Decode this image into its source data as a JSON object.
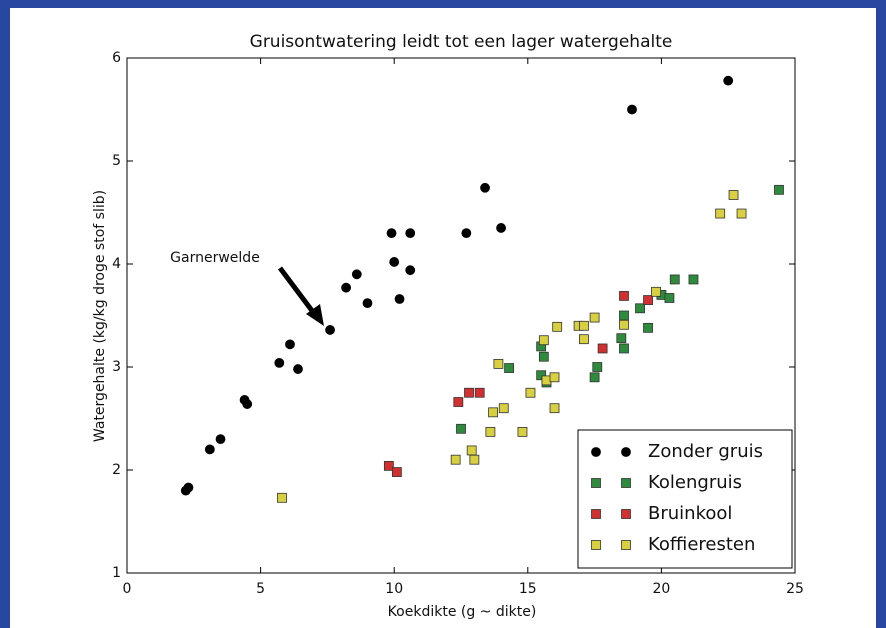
{
  "chart_data": {
    "type": "scatter",
    "title": "Gruisontwatering leidt tot een lager watergehalte",
    "xlabel": "Koekdikte (g ~ dikte)",
    "ylabel": "Watergehalte (kg/kg droge stof slib)",
    "xlim": [
      0,
      25
    ],
    "xticks": [
      0,
      5,
      10,
      15,
      20,
      25
    ],
    "ylim": [
      1,
      6
    ],
    "yticks": [
      1,
      2,
      3,
      4,
      5,
      6
    ],
    "legend": "lower right",
    "annotations": [
      {
        "text": "Garnerwelde"
      }
    ],
    "series": [
      {
        "name": "Zonder gruis",
        "color": "#000000",
        "marker": "circle",
        "x": [
          2.2,
          2.3,
          3.1,
          3.5,
          4.4,
          4.5,
          5.7,
          6.1,
          6.4,
          7.6,
          8.2,
          8.6,
          9.0,
          9.9,
          10.0,
          10.2,
          10.6,
          10.6,
          12.7,
          13.4,
          14.0,
          18.9,
          22.5
        ],
        "values": [
          1.8,
          1.83,
          2.2,
          2.3,
          2.68,
          2.64,
          3.04,
          3.22,
          2.98,
          3.36,
          3.77,
          3.9,
          3.62,
          4.3,
          4.02,
          3.66,
          4.3,
          3.94,
          4.3,
          4.74,
          4.35,
          5.5,
          5.78
        ]
      },
      {
        "name": "Kolengruis",
        "color": "#2e8b3e",
        "marker": "square",
        "x": [
          12.5,
          14.3,
          15.5,
          15.6,
          15.5,
          15.7,
          17.5,
          17.6,
          18.5,
          18.6,
          18.6,
          19.2,
          19.5,
          20.0,
          20.3,
          20.5,
          21.2,
          24.4
        ],
        "values": [
          2.4,
          2.99,
          3.2,
          3.1,
          2.92,
          2.85,
          2.9,
          3.0,
          3.28,
          3.18,
          3.5,
          3.57,
          3.38,
          3.7,
          3.67,
          3.85,
          3.85,
          4.72
        ]
      },
      {
        "name": "Bruinkool",
        "color": "#d03030",
        "marker": "square",
        "x": [
          9.8,
          10.1,
          12.4,
          12.8,
          13.2,
          17.8,
          18.6,
          19.5
        ],
        "values": [
          2.04,
          1.98,
          2.66,
          2.75,
          2.75,
          3.18,
          3.69,
          3.65
        ]
      },
      {
        "name": "Koffieresten",
        "color": "#d8d040",
        "marker": "square",
        "x": [
          5.8,
          12.3,
          12.9,
          13.0,
          13.6,
          13.7,
          13.9,
          14.1,
          14.8,
          15.1,
          15.6,
          15.7,
          16.0,
          16.0,
          16.1,
          16.9,
          17.1,
          17.1,
          17.5,
          18.6,
          19.8,
          22.2,
          22.7,
          23.0
        ],
        "values": [
          1.73,
          2.1,
          2.19,
          2.1,
          2.37,
          2.56,
          3.03,
          2.6,
          2.37,
          2.75,
          3.26,
          2.87,
          2.9,
          2.6,
          3.39,
          3.4,
          3.27,
          3.4,
          3.48,
          3.41,
          3.73,
          4.49,
          4.67,
          4.49
        ]
      }
    ]
  }
}
